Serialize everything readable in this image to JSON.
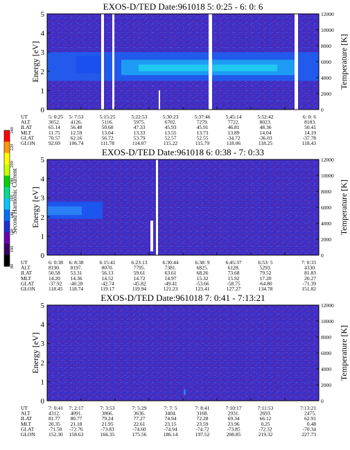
{
  "colorbar": {
    "label": "Second Harmonic Current",
    "ticks": [
      "80",
      "100",
      "120",
      "140",
      "160",
      "180",
      "200",
      "220",
      "240"
    ],
    "colors": [
      "#000000",
      "#3b0060",
      "#6a00b0",
      "#1f2fd8",
      "#0070ff",
      "#00c8ff",
      "#00e08a",
      "#00d400",
      "#c8ff00",
      "#ffff00",
      "#ff9900",
      "#ff0000"
    ]
  },
  "chart_data": [
    {
      "type": "heatmap",
      "title": "EXOS-D/TED   Date:961018  5: 0:25 - 6: 0: 6",
      "ylabel": "Energy [eV]",
      "y2label": "Temperature [K]",
      "ylim": [
        0,
        5
      ],
      "y2lim": [
        0,
        12000
      ],
      "yticks": [
        "0",
        "1",
        "2",
        "3",
        "4",
        "5"
      ],
      "y2ticks": [
        "0",
        "2000",
        "4000",
        "6000",
        "8000",
        "10000",
        "12000"
      ],
      "aux": {
        "labels": [
          "UT",
          "ALT",
          "ILAT",
          "MLT",
          "GLAT",
          "GLON"
        ],
        "columns": [
          [
            "5: 0:25",
            "3052.",
            "65.14",
            "11.75",
            "70.57",
            "92.69"
          ],
          [
            "5: 7:53",
            "4126.",
            "56.48",
            "12.59",
            "62.16",
            "106.74"
          ],
          [
            "5:15:25",
            "5116.",
            "50.60",
            "13.04",
            "56.72",
            "111.78"
          ],
          [
            "5:22:53",
            "5975.",
            "47.33",
            "13.33",
            "53.79",
            "114.07"
          ],
          [
            "5:30:23",
            "6702.",
            "45.93",
            "13.55",
            "52.57",
            "115.22"
          ],
          [
            "5:37:46",
            "7279.",
            "45.91",
            "13.73",
            "52.55",
            "115.79"
          ],
          [
            "5:45:14",
            "7722.",
            "46.81",
            "13.89",
            "-34.72",
            "118.06"
          ],
          [
            "5:52:42",
            "8023.",
            "48.36",
            "14.04",
            "-36.03",
            "118.25"
          ],
          [
            "6: 0: 6",
            "8183.",
            "50.41",
            "14.19",
            "-37.78",
            "118.43"
          ]
        ]
      }
    },
    {
      "type": "heatmap",
      "title": "EXOS-D/TED   Date:961018  6: 0:38 - 7: 0:33",
      "ylabel": "Energy [eV]",
      "y2label": "Temperature [K]",
      "ylim": [
        0,
        5
      ],
      "y2lim": [
        0,
        12000
      ],
      "yticks": [
        "0",
        "1",
        "2",
        "3",
        "4",
        "5"
      ],
      "y2ticks": [
        "0",
        "2000",
        "4000",
        "6000",
        "8000",
        "10000",
        "12000"
      ],
      "aux": {
        "labels": [
          "UT",
          "ALT",
          "ILAT",
          "MLT",
          "GLAT",
          "GLON"
        ],
        "columns": [
          [
            "6: 0:38",
            "8190.",
            "50.58",
            "14.20",
            "-37.92",
            "118.45"
          ],
          [
            "6: 8:38",
            "8197.",
            "53.31",
            "14.36",
            "-40.28",
            "118.74"
          ],
          [
            "6:15:41",
            "8070.",
            "56.13",
            "14.52",
            "-42.74",
            "119.17"
          ],
          [
            "6:23:13",
            "7795.",
            "59.61",
            "14.72",
            "-45.82",
            "119.94"
          ],
          [
            "6:30:44",
            "7381.",
            "63.61",
            "14.97",
            "-49.41",
            "121.23"
          ],
          [
            "6:38: 9",
            "6825.",
            "68.26",
            "15.32",
            "-53.66",
            "123.41"
          ],
          [
            "6:45:37",
            "6128.",
            "73.68",
            "15.92",
            "-58.75",
            "127.27"
          ],
          [
            "6:53: 5",
            "5293.",
            "79.52",
            "17.20",
            "-64.80",
            "134.78"
          ],
          [
            "7: 0:33",
            "4330.",
            "81.83",
            "20.27",
            "-71.39",
            "151.82"
          ]
        ]
      }
    },
    {
      "type": "heatmap",
      "title": "EXOS-D/TED   Date:961018  7: 0:41 - 7:13:21",
      "ylabel": "Energy [eV]",
      "y2label": "Temperature [K]",
      "ylim": [
        0,
        5
      ],
      "y2lim": [
        0,
        12000
      ],
      "yticks": [
        "0",
        "1",
        "2",
        "3",
        "4",
        "5"
      ],
      "y2ticks": [
        "0",
        "2000",
        "4000",
        "6000",
        "8000",
        "10000",
        "12000"
      ],
      "aux": {
        "labels": [
          "UT",
          "ALT",
          "ILAT",
          "MLT",
          "GLAT",
          "GLON"
        ],
        "columns": [
          [
            "7: 0:41",
            "4312.",
            "81.77",
            "20.35",
            "-71.50",
            "152.30"
          ],
          [
            "7: 2:17",
            "4091.",
            "80.77",
            "21.18",
            "-72.76",
            "158.63"
          ],
          [
            "7: 3:53",
            "3866.",
            "79.24",
            "21.95",
            "-73.83",
            "166.35"
          ],
          [
            "7: 5:29",
            "3636.",
            "77.27",
            "22.61",
            "-74.60",
            "175.56"
          ],
          [
            "7: 7: 5",
            "3404.",
            "74.94",
            "23.15",
            "-74.94",
            "186.14"
          ],
          [
            "7: 8:41",
            "3168.",
            "72.28",
            "23.59",
            "-74.72",
            "197.52"
          ],
          [
            "7:10:17",
            "2931.",
            "69.34",
            "23.96",
            "-73.85",
            "208.85"
          ],
          [
            "7:11:53",
            "2693.",
            "66.12",
            "0.25",
            "-72.32",
            "219.32"
          ],
          [
            "7:13:21",
            "2475.",
            "62.91",
            "0.48",
            "-70.34",
            "227.73"
          ]
        ]
      }
    }
  ]
}
